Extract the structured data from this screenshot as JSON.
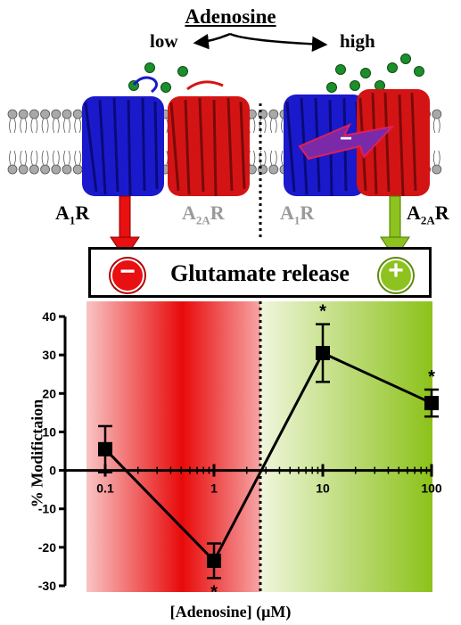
{
  "header": {
    "title": "Adenosine",
    "low_label": "low",
    "high_label": "high"
  },
  "receptors": {
    "left_active": "A",
    "left_active_sub": "1",
    "left_active_suffix": "R",
    "left_inactive": "A",
    "left_inactive_sub": "2A",
    "left_inactive_suffix": "R",
    "right_inactive": "A",
    "right_inactive_sub": "1",
    "right_inactive_suffix": "R",
    "right_active": "A",
    "right_active_sub": "2A",
    "right_active_suffix": "R"
  },
  "effect_box": {
    "label": "Glutamate release",
    "minus_symbol": "−",
    "plus_symbol": "+"
  },
  "colors": {
    "a1r_blue": "#1a1acc",
    "a2ar_red": "#d41414",
    "inhibit_red": "#e81010",
    "facilitate_green": "#8dc21f",
    "adenosine_dot": "#1b8f2a"
  },
  "chart_data": {
    "type": "line",
    "xscale": "log",
    "x": [
      0.1,
      1,
      10,
      100
    ],
    "xtick_labels": [
      "0.1",
      "1",
      "10",
      "100"
    ],
    "y": [
      5.5,
      -23.5,
      30.5,
      17.5
    ],
    "y_error": [
      6,
      4.5,
      7.5,
      3.5
    ],
    "significance": [
      "",
      "*",
      "*",
      "*"
    ],
    "ylim": [
      -30,
      40
    ],
    "yticks": [
      40,
      30,
      20,
      10,
      0,
      -10,
      -20,
      -30
    ],
    "ytick_labels": [
      "40",
      "30",
      "20",
      "10",
      "0",
      "-10",
      "-20",
      "-30"
    ],
    "ylabel": "% Modifictaion",
    "xlabel": "[Adenosine] (μM)"
  }
}
